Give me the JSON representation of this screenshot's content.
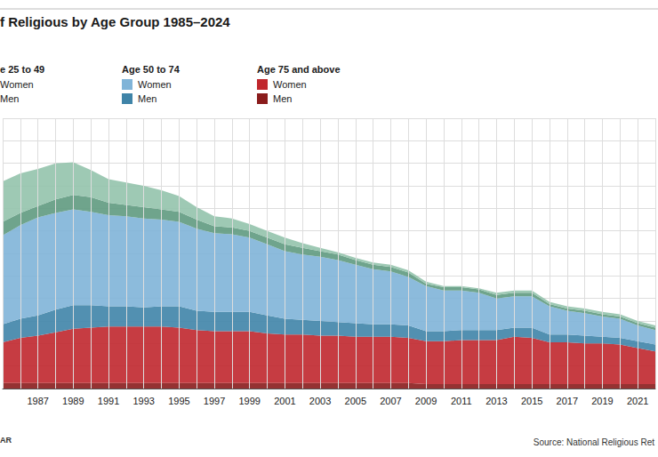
{
  "chart_data": {
    "type": "area",
    "title": "f Religious by Age Group 1985–2024",
    "source": "Source: National Religious Ret",
    "credit": "AR",
    "stacked": true,
    "grid": true,
    "tick_labels": "x",
    "categories": [
      null,
      null,
      "1987",
      null,
      "1989",
      null,
      "1991",
      null,
      "1993",
      null,
      "1995",
      null,
      "1997",
      null,
      "1999",
      null,
      "2001",
      null,
      "2003",
      null,
      "2005",
      null,
      "2007",
      null,
      "2009",
      null,
      "2011",
      null,
      "2013",
      null,
      "2015",
      null,
      "2017",
      null,
      "2019",
      null,
      "2021",
      null
    ],
    "ylim": [
      0,
      12
    ],
    "yticks": [
      0,
      1,
      2,
      3,
      4,
      5,
      6,
      7,
      8,
      9,
      10,
      11,
      12
    ],
    "series": [
      {
        "name": "Men",
        "group": "Age 75 and above",
        "color": "#8a1c1c",
        "values": [
          0.25,
          0.25,
          0.25,
          0.25,
          0.25,
          0.25,
          0.25,
          0.25,
          0.25,
          0.25,
          0.25,
          0.25,
          0.25,
          0.25,
          0.25,
          0.25,
          0.25,
          0.25,
          0.25,
          0.25,
          0.25,
          0.25,
          0.25,
          0.25,
          0.2,
          0.2,
          0.2,
          0.2,
          0.2,
          0.2,
          0.2,
          0.2,
          0.2,
          0.2,
          0.2,
          0.2,
          0.2,
          0.2
        ]
      },
      {
        "name": "Women",
        "group": "Age 75 and above",
        "color": "#c0272d",
        "values": [
          1.8,
          2.0,
          2.1,
          2.25,
          2.4,
          2.45,
          2.5,
          2.5,
          2.5,
          2.5,
          2.45,
          2.35,
          2.3,
          2.3,
          2.3,
          2.2,
          2.15,
          2.15,
          2.1,
          2.1,
          2.05,
          2.05,
          2.05,
          2.0,
          1.9,
          1.9,
          1.95,
          1.95,
          1.95,
          2.1,
          2.05,
          1.85,
          1.85,
          1.8,
          1.8,
          1.75,
          1.6,
          1.45
        ]
      },
      {
        "name": "Men",
        "group": "Age 50 to 74",
        "color": "#3f84a8",
        "values": [
          0.8,
          0.85,
          0.9,
          1.0,
          1.05,
          1.0,
          0.9,
          0.9,
          0.85,
          0.9,
          0.95,
          0.85,
          0.85,
          0.85,
          0.85,
          0.8,
          0.7,
          0.65,
          0.65,
          0.6,
          0.6,
          0.55,
          0.55,
          0.55,
          0.45,
          0.45,
          0.45,
          0.45,
          0.45,
          0.4,
          0.45,
          0.35,
          0.35,
          0.35,
          0.3,
          0.3,
          0.3,
          0.3
        ]
      },
      {
        "name": "Women",
        "group": "Age 50 to 74",
        "color": "#80b4d8",
        "values": [
          3.95,
          4.15,
          4.35,
          4.3,
          4.25,
          4.15,
          4.05,
          4.0,
          3.95,
          3.85,
          3.75,
          3.65,
          3.5,
          3.45,
          3.3,
          3.15,
          3.0,
          2.9,
          2.85,
          2.75,
          2.6,
          2.45,
          2.35,
          2.15,
          2.0,
          1.8,
          1.75,
          1.65,
          1.4,
          1.4,
          1.4,
          1.25,
          1.05,
          1.0,
          0.9,
          0.85,
          0.7,
          0.65
        ]
      },
      {
        "name": "Men",
        "group": "e 25 to 49",
        "color": "#5f9a80",
        "values": [
          0.6,
          0.55,
          0.5,
          0.6,
          0.65,
          0.65,
          0.55,
          0.5,
          0.5,
          0.45,
          0.45,
          0.4,
          0.3,
          0.3,
          0.3,
          0.3,
          0.3,
          0.3,
          0.25,
          0.25,
          0.2,
          0.2,
          0.2,
          0.2,
          0.1,
          0.15,
          0.15,
          0.15,
          0.15,
          0.15,
          0.15,
          0.1,
          0.1,
          0.1,
          0.1,
          0.1,
          0.1,
          0.1
        ]
      },
      {
        "name": "Women",
        "group": "e 25 to 49",
        "color": "#94c3ac",
        "values": [
          1.8,
          1.75,
          1.65,
          1.6,
          1.45,
          1.2,
          1.05,
          1.0,
          0.95,
          0.85,
          0.7,
          0.55,
          0.45,
          0.4,
          0.3,
          0.3,
          0.3,
          0.2,
          0.15,
          0.1,
          0.1,
          0.1,
          0.1,
          0.1,
          0.1,
          0.05,
          0.05,
          0.05,
          0.1,
          0.1,
          0.1,
          0.1,
          0.1,
          0.1,
          0.1,
          0.1,
          0.1,
          0.1
        ]
      }
    ]
  }
}
